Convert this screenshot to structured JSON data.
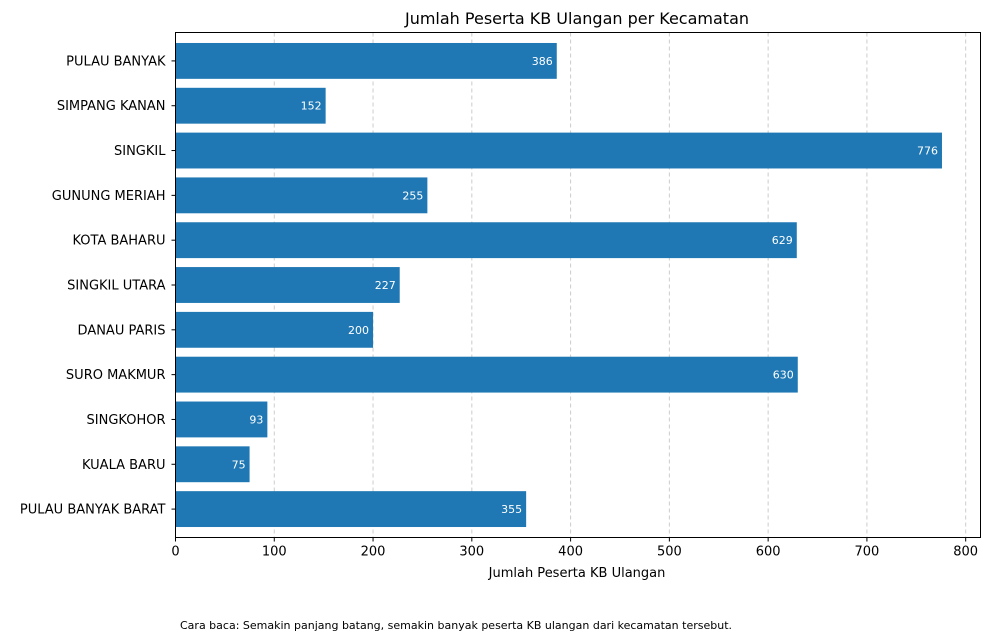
{
  "chart_data": {
    "type": "bar",
    "orientation": "horizontal",
    "title": "Jumlah Peserta KB Ulangan per Kecamatan",
    "xlabel": "Jumlah Peserta KB Ulangan",
    "ylabel": "",
    "categories": [
      "PULAU BANYAK",
      "SIMPANG KANAN",
      "SINGKIL",
      "GUNUNG MERIAH",
      "KOTA BAHARU",
      "SINGKIL UTARA",
      "DANAU PARIS",
      "SURO MAKMUR",
      "SINGKOHOR",
      "KUALA BARU",
      "PULAU BANYAK BARAT"
    ],
    "values": [
      386,
      152,
      776,
      255,
      629,
      227,
      200,
      630,
      93,
      75,
      355
    ],
    "xlim": [
      0,
      815
    ],
    "xticks": [
      0,
      100,
      200,
      300,
      400,
      500,
      600,
      700,
      800
    ],
    "grid": "x-dashed",
    "bar_color": "#1f77b4",
    "value_label_color": "#ffffff",
    "grid_color": "#cccccc"
  },
  "caption": "Cara baca: Semakin panjang batang, semakin banyak peserta KB ulangan dari kecamatan tersebut."
}
